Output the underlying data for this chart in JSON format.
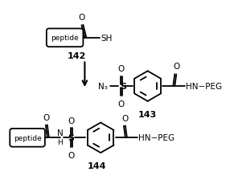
{
  "background_color": "#ffffff",
  "figure_width": 2.91,
  "figure_height": 2.3,
  "dpi": 100,
  "label_142": "142",
  "label_143": "143",
  "label_144": "144",
  "font_color": "#000000",
  "line_color": "#000000",
  "line_width": 1.3
}
